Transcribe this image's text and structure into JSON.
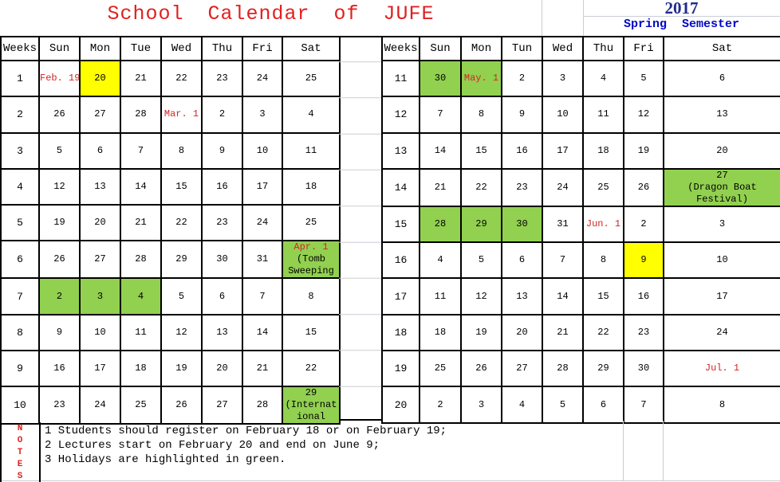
{
  "title": "School  Calendar  of  JUFE",
  "year": "2017",
  "semester": "Spring  Semester",
  "colors": {
    "title_red": "#e02020",
    "date_red": "#d42424",
    "holiday_green": "#92d050",
    "exam_yellow": "#ffff00",
    "year_navy": "#1f2c8c",
    "semester_blue": "#0008c8",
    "gridline_gray": "#c9cdd3"
  },
  "left_table": {
    "headers": [
      "Weeks",
      "Sun",
      "Mon",
      "Tue",
      "Wed",
      "Thu",
      "Fri",
      "Sat"
    ],
    "rows": [
      {
        "week": "1",
        "days": [
          {
            "t": "Feb. 19",
            "fg": "red"
          },
          {
            "t": "20",
            "bg": "yellow"
          },
          "21",
          "22",
          "23",
          "24",
          "25"
        ]
      },
      {
        "week": "2",
        "days": [
          "26",
          "27",
          "28",
          {
            "t": "Mar. 1",
            "fg": "red"
          },
          "2",
          "3",
          "4"
        ]
      },
      {
        "week": "3",
        "days": [
          "5",
          "6",
          "7",
          "8",
          "9",
          "10",
          "11"
        ]
      },
      {
        "week": "4",
        "days": [
          "12",
          "13",
          "14",
          "15",
          "16",
          "17",
          "18"
        ]
      },
      {
        "week": "5",
        "days": [
          "19",
          "20",
          "21",
          "22",
          "23",
          "24",
          "25"
        ]
      },
      {
        "week": "6",
        "days": [
          "26",
          "27",
          "28",
          "29",
          "30",
          "31",
          {
            "bg": "green",
            "lines": [
              {
                "t": "Apr. 1",
                "fg": "red"
              },
              "(Tomb",
              "Sweeping"
            ]
          }
        ]
      },
      {
        "week": "7",
        "days": [
          {
            "t": "2",
            "bg": "green"
          },
          {
            "t": "3",
            "bg": "green"
          },
          {
            "t": "4",
            "bg": "green"
          },
          "5",
          "6",
          "7",
          "8"
        ]
      },
      {
        "week": "8",
        "days": [
          "9",
          "10",
          "11",
          "12",
          "13",
          "14",
          "15"
        ]
      },
      {
        "week": "9",
        "days": [
          "16",
          "17",
          "18",
          "19",
          "20",
          "21",
          "22"
        ]
      },
      {
        "week": "10",
        "days": [
          "23",
          "24",
          "25",
          "26",
          "27",
          "28",
          {
            "bg": "green",
            "lines": [
              "29",
              "(Internat",
              "ional"
            ]
          }
        ]
      }
    ]
  },
  "right_table": {
    "headers": [
      "Weeks",
      "Sun",
      "Mon",
      "Tun",
      "Wed",
      "Thu",
      "Fri",
      "Sat"
    ],
    "rows": [
      {
        "week": "11",
        "days": [
          {
            "t": "30",
            "bg": "green"
          },
          {
            "t": "May. 1",
            "fg": "red",
            "bg": "green"
          },
          "2",
          "3",
          "4",
          "5",
          "6"
        ]
      },
      {
        "week": "12",
        "days": [
          "7",
          "8",
          "9",
          "10",
          "11",
          "12",
          "13"
        ]
      },
      {
        "week": "13",
        "days": [
          "14",
          "15",
          "16",
          "17",
          "18",
          "19",
          "20"
        ]
      },
      {
        "week": "14",
        "days": [
          "21",
          "22",
          "23",
          "24",
          "25",
          "26",
          {
            "bg": "green",
            "lines": [
              "27",
              "(Dragon Boat",
              "Festival)"
            ]
          }
        ]
      },
      {
        "week": "15",
        "days": [
          {
            "t": "28",
            "bg": "green"
          },
          {
            "t": "29",
            "bg": "green"
          },
          {
            "t": "30",
            "bg": "green"
          },
          "31",
          {
            "t": "Jun. 1",
            "fg": "red"
          },
          "2",
          "3"
        ]
      },
      {
        "week": "16",
        "days": [
          "4",
          "5",
          "6",
          "7",
          "8",
          {
            "t": "9",
            "bg": "yellow"
          },
          "10"
        ]
      },
      {
        "week": "17",
        "days": [
          "11",
          "12",
          "13",
          "14",
          "15",
          "16",
          "17"
        ]
      },
      {
        "week": "18",
        "days": [
          "18",
          "19",
          "20",
          "21",
          "22",
          "23",
          "24"
        ]
      },
      {
        "week": "19",
        "days": [
          "25",
          "26",
          "27",
          "28",
          "29",
          "30",
          {
            "t": "Jul. 1",
            "fg": "red"
          }
        ]
      },
      {
        "week": "20",
        "days": [
          "2",
          "3",
          "4",
          "5",
          "6",
          "7",
          "8"
        ]
      }
    ]
  },
  "notes": {
    "label": "N\nO\nT\nE\nS",
    "lines": [
      "1 Students should register on February 18 or on February 19;",
      "2 Lectures start on February 20 and end on June 9;",
      "3 Holidays are highlighted in green."
    ]
  }
}
